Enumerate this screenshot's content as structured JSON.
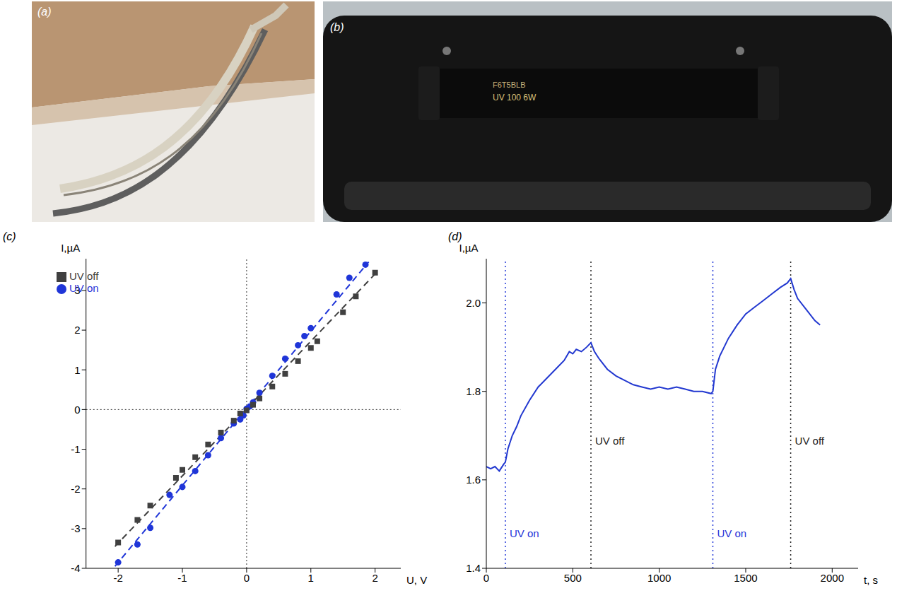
{
  "photos": [
    {
      "label": "(a)"
    },
    {
      "label": "(b)",
      "text": [
        "F6T5BLB",
        "UV 100 6W"
      ]
    }
  ],
  "chart_data": [
    {
      "type": "scatter",
      "label": "(c)",
      "xlabel": "U, V",
      "ylabel": "I,µA",
      "xlim": [
        -2.5,
        2.4
      ],
      "xticks": [
        -2,
        -1,
        0,
        1,
        2
      ],
      "ylim": [
        -4,
        3.8
      ],
      "yticks": [
        -4,
        -3,
        -2,
        -1,
        0,
        1,
        2,
        3
      ],
      "legend": "upper left",
      "reference_lines": [
        {
          "axis": "x",
          "value": 0
        },
        {
          "axis": "y",
          "value": 0
        }
      ],
      "series": [
        {
          "name": "UV on",
          "color": "#1f35d8",
          "marker": "circle",
          "x": [
            -2.0,
            -1.7,
            -1.5,
            -1.2,
            -1.0,
            -0.8,
            -0.6,
            -0.4,
            -0.2,
            -0.1,
            -0.05,
            0.0,
            0.05,
            0.1,
            0.2,
            0.4,
            0.6,
            0.8,
            0.9,
            1.0,
            1.4,
            1.6,
            1.85
          ],
          "values": [
            -3.85,
            -3.4,
            -2.98,
            -2.15,
            -1.95,
            -1.55,
            -1.15,
            -0.72,
            -0.35,
            -0.25,
            -0.15,
            0.02,
            0.08,
            0.18,
            0.42,
            0.85,
            1.28,
            1.62,
            1.85,
            2.05,
            2.9,
            3.32,
            3.65
          ],
          "fit": {
            "x": [
              -2.05,
              1.9
            ],
            "values": [
              -3.95,
              3.72
            ],
            "line_style": "dashed"
          }
        },
        {
          "name": "UV off",
          "color": "#404040",
          "marker": "square",
          "x": [
            -2.0,
            -1.7,
            -1.5,
            -1.1,
            -1.0,
            -0.8,
            -0.6,
            -0.4,
            -0.2,
            -0.1,
            0.0,
            0.1,
            0.2,
            0.4,
            0.6,
            0.8,
            1.0,
            1.1,
            1.5,
            1.7,
            2.0
          ],
          "values": [
            -3.35,
            -2.78,
            -2.42,
            -1.72,
            -1.52,
            -1.2,
            -0.88,
            -0.58,
            -0.28,
            -0.1,
            -0.02,
            0.12,
            0.28,
            0.58,
            0.9,
            1.22,
            1.55,
            1.72,
            2.45,
            2.85,
            3.45
          ],
          "fit": {
            "x": [
              -2.05,
              2.05
            ],
            "values": [
              -3.45,
              3.5
            ],
            "line_style": "dashed"
          }
        }
      ]
    },
    {
      "type": "line",
      "label": "(d)",
      "xlabel": "t, s",
      "ylabel": "I,µA",
      "xlim": [
        0,
        2150
      ],
      "xticks": [
        0,
        500,
        1000,
        1500,
        2000
      ],
      "ylim": [
        1.4,
        2.1
      ],
      "yticks": [
        1.4,
        1.6,
        1.8,
        {
          "value": 2,
          "label": "2.0"
        }
      ],
      "color": "#2238d0",
      "x": [
        0,
        25,
        50,
        75,
        100,
        110,
        125,
        150,
        175,
        200,
        250,
        300,
        350,
        400,
        450,
        480,
        500,
        520,
        550,
        580,
        605,
        625,
        650,
        700,
        750,
        800,
        850,
        900,
        950,
        1000,
        1050,
        1100,
        1150,
        1200,
        1250,
        1300,
        1310,
        1325,
        1350,
        1400,
        1450,
        1500,
        1550,
        1600,
        1650,
        1700,
        1740,
        1760,
        1780,
        1800,
        1850,
        1900,
        1930
      ],
      "values": [
        1.63,
        1.625,
        1.63,
        1.62,
        1.635,
        1.64,
        1.67,
        1.7,
        1.72,
        1.745,
        1.78,
        1.81,
        1.83,
        1.85,
        1.87,
        1.89,
        1.885,
        1.895,
        1.89,
        1.9,
        1.91,
        1.89,
        1.875,
        1.85,
        1.835,
        1.825,
        1.815,
        1.81,
        1.805,
        1.81,
        1.805,
        1.81,
        1.805,
        1.8,
        1.8,
        1.795,
        1.8,
        1.85,
        1.88,
        1.92,
        1.95,
        1.975,
        1.99,
        2.005,
        2.02,
        2.035,
        2.045,
        2.055,
        2.03,
        2.01,
        1.985,
        1.96,
        1.95
      ],
      "annotations": [
        {
          "text": "UV on",
          "x": 110,
          "color": "#1f35d8",
          "line_style": "dotted"
        },
        {
          "text": "UV off",
          "x": 605,
          "color": "#222222",
          "line_style": "dotted"
        },
        {
          "text": "UV on",
          "x": 1310,
          "color": "#1f35d8",
          "line_style": "dotted"
        },
        {
          "text": "UV off",
          "x": 1760,
          "color": "#222222",
          "line_style": "dotted"
        }
      ]
    }
  ]
}
